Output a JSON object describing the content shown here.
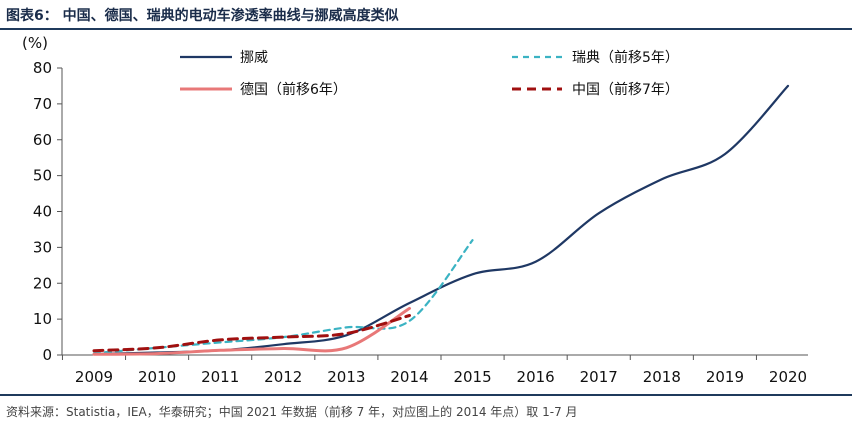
{
  "header": {
    "title": "图表6：  中国、德国、瑞典的电动车渗透率曲线与挪威高度类似"
  },
  "footer": {
    "source": "资料来源：Statistia，IEA，华泰研究；中国 2021 年数据（前移 7 年，对应图上的 2014 年点）取 1-7 月"
  },
  "chart_data": {
    "type": "line",
    "title": "",
    "unit_label": "(%)",
    "xlabel": "",
    "ylabel": "",
    "categories": [
      "2009",
      "2010",
      "2011",
      "2012",
      "2013",
      "2014",
      "2015",
      "2016",
      "2017",
      "2018",
      "2019",
      "2020"
    ],
    "ylim": [
      0,
      80
    ],
    "yticks": [
      "0",
      "10",
      "20",
      "30",
      "40",
      "50",
      "60",
      "70",
      "80"
    ],
    "grid": false,
    "legend_position": "top",
    "series": [
      {
        "name": "挪威",
        "color": "#1f3864",
        "dash": "solid",
        "x": [
          2009,
          2010,
          2011,
          2012,
          2013,
          2014,
          2015,
          2016,
          2017,
          2018,
          2019,
          2020
        ],
        "values": [
          0.3,
          0.7,
          1.3,
          3,
          5.5,
          14.5,
          22.5,
          26,
          39.5,
          49,
          56,
          75
        ]
      },
      {
        "name": "瑞典（前移5年）",
        "color": "#3bb3c3",
        "dash": "dash",
        "x": [
          2009,
          2010,
          2011,
          2012,
          2013,
          2014,
          2015
        ],
        "values": [
          0.5,
          2,
          3.5,
          5,
          7.7,
          9.5,
          32
        ]
      },
      {
        "name": "德国（前移6年）",
        "color": "#e87878",
        "dash": "solid",
        "x": [
          2009,
          2010,
          2011,
          2012,
          2013,
          2014
        ],
        "values": [
          0.2,
          0.4,
          1.3,
          1.8,
          2,
          13
        ]
      },
      {
        "name": "中国（前移7年）",
        "color": "#a01010",
        "dash": "dash",
        "x": [
          2009,
          2010,
          2011,
          2012,
          2013,
          2014
        ],
        "values": [
          1.2,
          2,
          4.2,
          5,
          6,
          11
        ]
      }
    ]
  }
}
